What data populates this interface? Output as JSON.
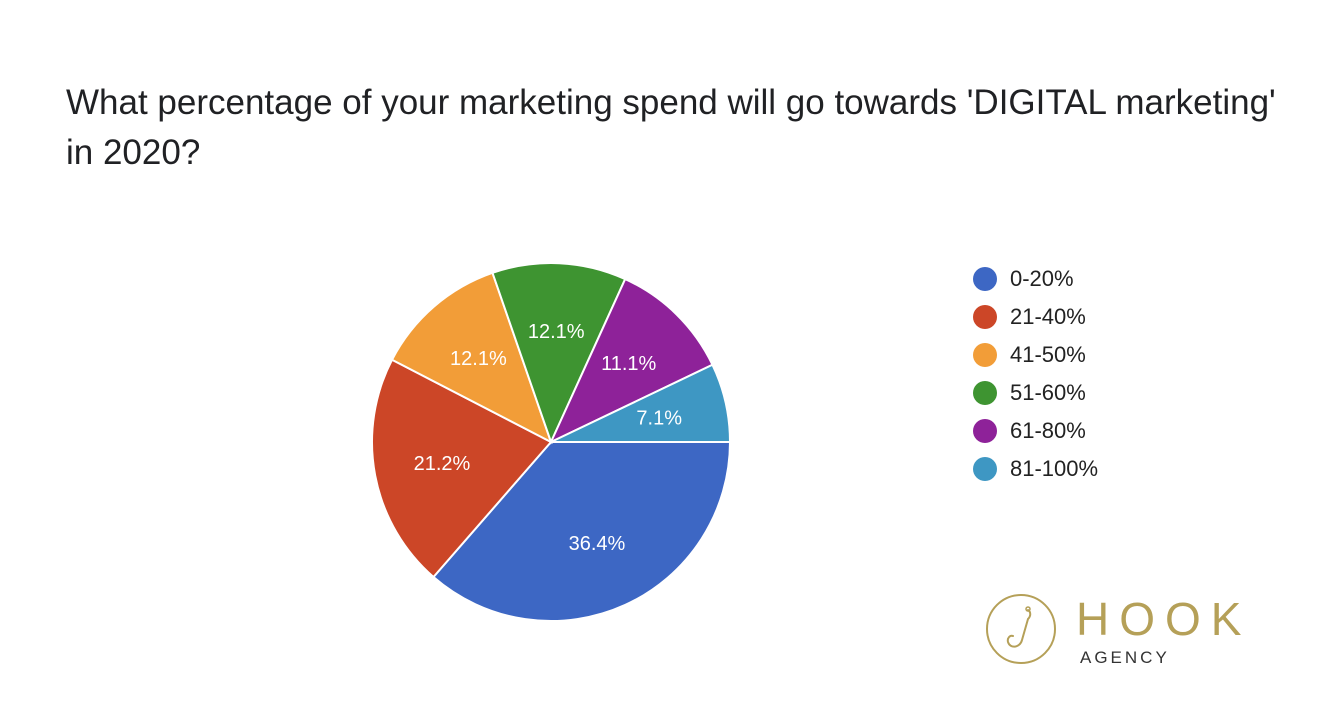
{
  "title": "What percentage of your marketing spend will go towards 'DIGITAL marketing' in 2020?",
  "chart_data": {
    "type": "pie",
    "title": "What percentage of your marketing spend will go towards 'DIGITAL marketing' in 2020?",
    "categories": [
      "0-20%",
      "21-40%",
      "41-50%",
      "51-60%",
      "61-80%",
      "81-100%"
    ],
    "values": [
      36.4,
      21.2,
      12.1,
      12.1,
      11.1,
      7.1
    ],
    "labels": [
      "36.4%",
      "21.2%",
      "12.1%",
      "12.1%",
      "11.1%",
      "7.1%"
    ],
    "colors": [
      "#3d67c4",
      "#cc4627",
      "#f29d38",
      "#3e9431",
      "#8e2299",
      "#3e97c3"
    ],
    "legend_position": "right",
    "start_angle": "3 o'clock, clockwise"
  },
  "legend": [
    {
      "label": "0-20%",
      "color": "#3d67c4"
    },
    {
      "label": "21-40%",
      "color": "#cc4627"
    },
    {
      "label": "41-50%",
      "color": "#f29d38"
    },
    {
      "label": "51-60%",
      "color": "#3e9431"
    },
    {
      "label": "61-80%",
      "color": "#8e2299"
    },
    {
      "label": "81-100%",
      "color": "#3e97c3"
    }
  ],
  "logo": {
    "word": "HOOK",
    "sub": "AGENCY",
    "color": "#b5a058"
  }
}
